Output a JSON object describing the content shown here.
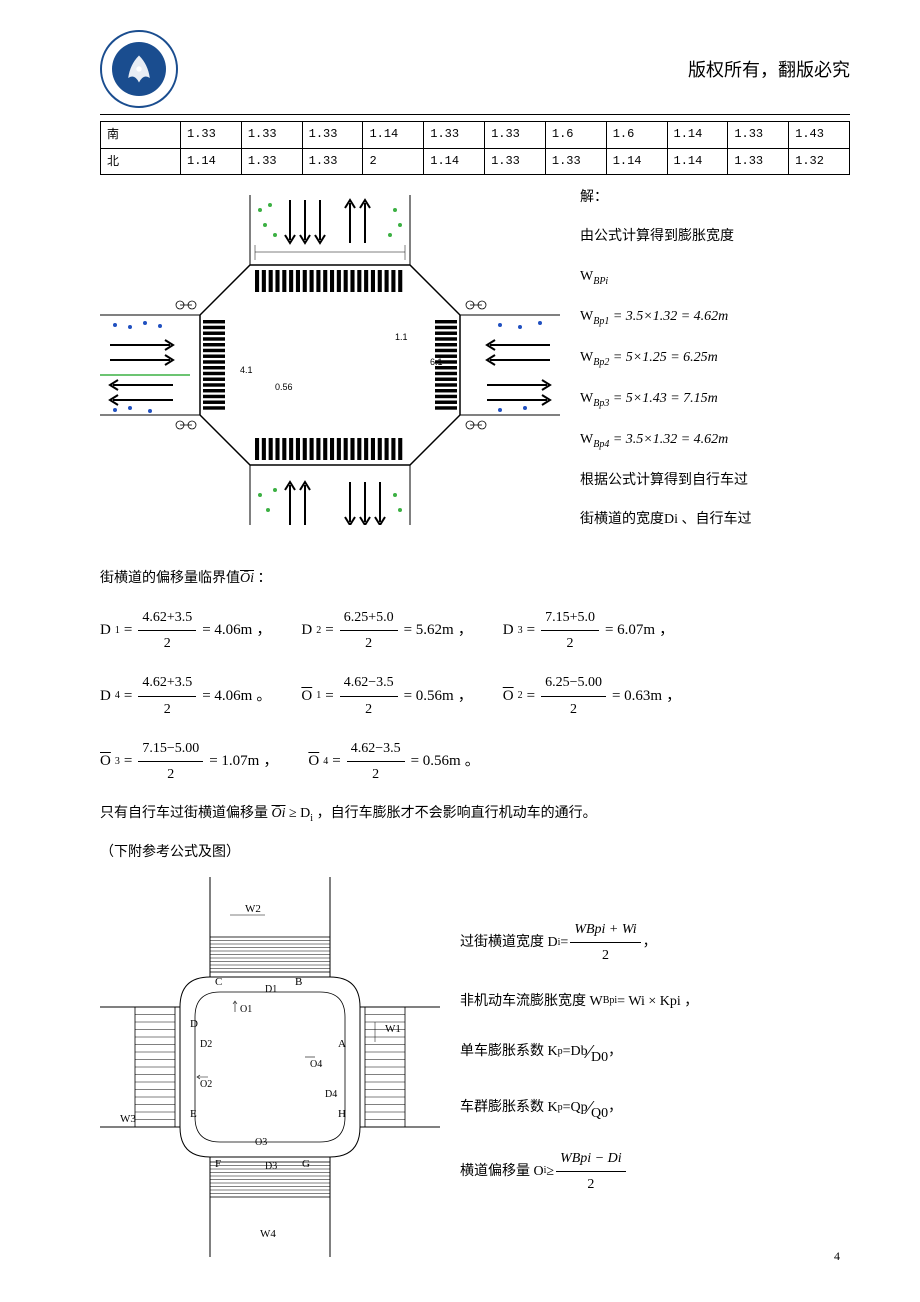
{
  "header": {
    "copyright": "版权所有，翻版必究"
  },
  "table": {
    "rows": [
      {
        "label": "南",
        "values": [
          "1.33",
          "1.33",
          "1.33",
          "1.14",
          "1.33",
          "1.33",
          "1.6",
          "1.6",
          "1.14",
          "1.33",
          "1.43"
        ]
      },
      {
        "label": "北",
        "values": [
          "1.14",
          "1.33",
          "1.33",
          "2",
          "1.14",
          "1.33",
          "1.33",
          "1.14",
          "1.14",
          "1.33",
          "1.32"
        ]
      }
    ]
  },
  "explain1": {
    "line1": "解：",
    "line2": "由公式计算得到膨胀宽度",
    "symbol": "W",
    "symbolSub": "BPi",
    "eq1": "WBp1 = 3.5×1.32 = 4.62m",
    "eq2": "WBp2 = 5×1.25 = 6.25m",
    "eq3": "WBp3 = 5×1.43 = 7.15m",
    "eq4": "WBp4 = 3.5×1.32 = 4.62m",
    "line3": "根据公式计算得到自行车过",
    "line4": "街横道的宽度Di 、自行车过"
  },
  "bodyText1": "街横道的偏移量临界值",
  "bodyText1Sym": "Ōi",
  "bodyText1End": " ：",
  "formulas1": [
    {
      "label": "D1",
      "num": "4.62+3.5",
      "den": "2",
      "result": "4.06m",
      "sep": "，"
    },
    {
      "label": "D2",
      "num": "6.25+5.0",
      "den": "2",
      "result": "5.62m",
      "sep": "，"
    },
    {
      "label": "D3",
      "num": "7.15+5.0",
      "den": "2",
      "result": "6.07m",
      "sep": "，"
    }
  ],
  "formulas2": [
    {
      "label": "D4",
      "num": "4.62+3.5",
      "den": "2",
      "result": "4.06m",
      "sep": "。",
      "overline": false
    },
    {
      "label": "O1",
      "num": "4.62−3.5",
      "den": "2",
      "result": "0.56m",
      "sep": "，",
      "overline": true
    },
    {
      "label": "O2",
      "num": "6.25−5.00",
      "den": "2",
      "result": "0.63m",
      "sep": "，",
      "overline": true
    }
  ],
  "formulas3": [
    {
      "label": "O3",
      "num": "7.15−5.00",
      "den": "2",
      "result": "1.07m",
      "sep": "，",
      "overline": true
    },
    {
      "label": "O4",
      "num": "4.62−3.5",
      "den": "2",
      "result": "0.56m",
      "sep": "。",
      "overline": true
    }
  ],
  "condition": {
    "prefix": "只有自行车过街横道偏移量 ",
    "sym1": "Ōi",
    "op": " ≥ D",
    "sub": "i",
    "suffix": " ，自行车膨胀才不会影响直行机动车的通行。"
  },
  "note": "（下附参考公式及图）",
  "explain2": {
    "items": [
      {
        "label": "过街横道宽度 D",
        "sub": "i",
        "eq": " = ",
        "num": "WBpi + Wi",
        "den": "2",
        "tail": " ，"
      },
      {
        "label": "非机动车流膨胀宽度 W",
        "sub": "Bpi",
        "eq": " = Wi × Kpi ，",
        "type": "inline"
      },
      {
        "label": "单车膨胀系数 K",
        "sub": "p",
        "eq": " = ",
        "num": "Db",
        "den": "D0",
        "slash": true,
        "tail": " ，"
      },
      {
        "label": "车群膨胀系数 K",
        "sub": "p",
        "eq": " = ",
        "num": "Qp",
        "den": "Q0",
        "slash": true,
        "tail": " ，"
      },
      {
        "label": "横道偏移量 O",
        "sub": "i",
        "eq": " ≥ ",
        "num": "WBpi − Di",
        "den": "2",
        "tail": ""
      }
    ]
  },
  "diagram1": {
    "labels": [
      "1.1",
      "6.1",
      "4.1",
      "0.56"
    ]
  },
  "diagram2": {
    "nodes": [
      "A",
      "B",
      "C",
      "D",
      "E",
      "F",
      "G",
      "H"
    ],
    "widths": [
      "W1",
      "W2",
      "W3",
      "W4"
    ],
    "dims": [
      "D1",
      "D2",
      "D3",
      "D4"
    ],
    "offsets": [
      "O1",
      "O2",
      "O3",
      "O4"
    ]
  },
  "pageNumber": "4",
  "colors": {
    "logoBlue": "#1a4d8f",
    "green": "#3cb043",
    "blue": "#2050c0",
    "black": "#000000"
  }
}
